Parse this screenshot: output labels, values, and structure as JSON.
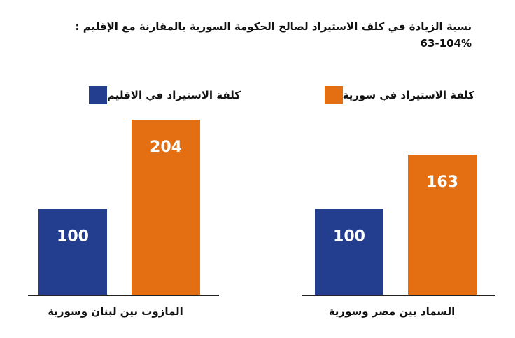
{
  "chart_data": {
    "type": "bar",
    "title": "نسبة الزيادة في كلف الاستيراد لصالح الحكومة السورية بالمقارنة مع الإقليم :",
    "subtitle": "63-104%",
    "categories": [
      "السماد بين مصر وسورية",
      "المازوت بين لبنان وسورية"
    ],
    "series": [
      {
        "name": "كلفة الاستيراد في الاقليم",
        "values": [
          100,
          100
        ],
        "color": "#233d8f"
      },
      {
        "name": "كلفة الاستيراد في سورية",
        "values": [
          163,
          204
        ],
        "color": "#e36f12"
      }
    ],
    "ylim": [
      0,
      204
    ],
    "grid": false,
    "legend": "top",
    "colors": {
      "region": "#233d8f",
      "syria": "#e36f12",
      "axis": "#222222"
    }
  }
}
